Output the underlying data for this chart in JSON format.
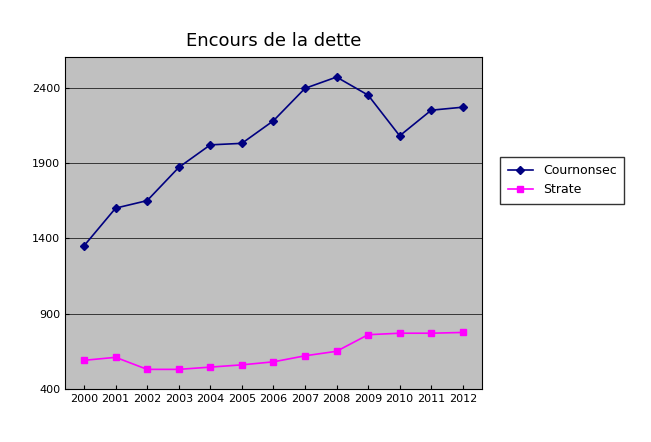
{
  "title": "Encours de la dette",
  "years": [
    2000,
    2001,
    2002,
    2003,
    2004,
    2005,
    2006,
    2007,
    2008,
    2009,
    2010,
    2011,
    2012
  ],
  "cournonsec": [
    1350,
    1600,
    1650,
    1870,
    2020,
    2030,
    2180,
    2395,
    2470,
    2350,
    2080,
    2250,
    2270
  ],
  "strate": [
    590,
    610,
    530,
    530,
    545,
    560,
    580,
    620,
    650,
    760,
    770,
    770,
    775
  ],
  "cournonsec_color": "#000080",
  "strate_color": "#FF00FF",
  "plot_bg_color": "#C0C0C0",
  "fig_bg_color": "#FFFFFF",
  "border_color": "#808080",
  "ylim": [
    400,
    2600
  ],
  "yticks": [
    400,
    900,
    1400,
    1900,
    2400
  ],
  "legend_labels": [
    "Cournonsec",
    "Strate"
  ],
  "cournonsec_marker": "D",
  "strate_marker": "s",
  "linewidth": 1.2,
  "markersize": 4,
  "title_fontsize": 13,
  "tick_fontsize": 8,
  "legend_fontsize": 9
}
